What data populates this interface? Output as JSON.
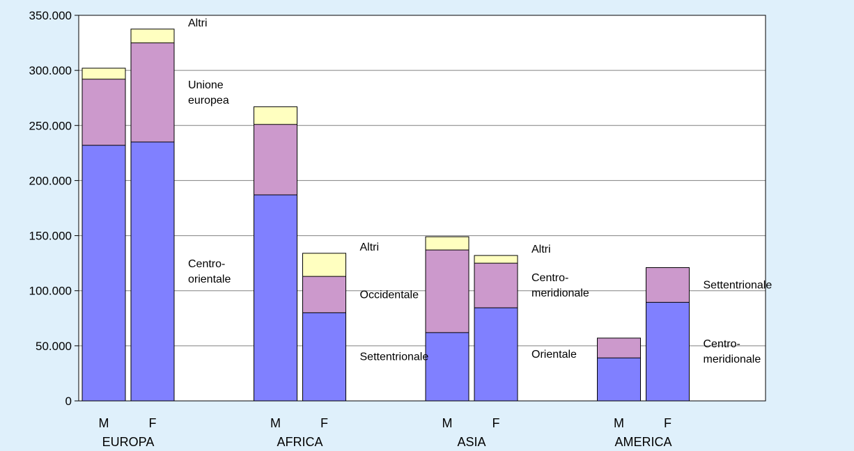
{
  "chart_data": {
    "type": "bar",
    "stacked": true,
    "ylim": [
      0,
      350000
    ],
    "yticks": [
      {
        "value": 0,
        "label": "0"
      },
      {
        "value": 50000,
        "label": "50.000"
      },
      {
        "value": 100000,
        "label": "100.000"
      },
      {
        "value": 150000,
        "label": "150.000"
      },
      {
        "value": 200000,
        "label": "200.000"
      },
      {
        "value": 250000,
        "label": "250.000"
      },
      {
        "value": 300000,
        "label": "300.000"
      },
      {
        "value": 350000,
        "label": "350.000"
      }
    ],
    "grid": true,
    "colors": {
      "bottom": "#8080ff",
      "middle": "#cc99cc",
      "top": "#ffffc0",
      "plot_bg": "#ffffff",
      "gridline": "#808080",
      "bar_edge": "#000000"
    },
    "groups": [
      {
        "name": "EUROPA",
        "bars": [
          {
            "label": "M",
            "values": [
              232000,
              60000,
              10000
            ]
          },
          {
            "label": "F",
            "values": [
              235000,
              90000,
              12500
            ]
          }
        ],
        "segment_labels": [
          "Centro-\norientale",
          "Unione\neuropea",
          "Altri"
        ]
      },
      {
        "name": "AFRICA",
        "bars": [
          {
            "label": "M",
            "values": [
              187000,
              64000,
              16000
            ]
          },
          {
            "label": "F",
            "values": [
              80000,
              33000,
              21000
            ]
          }
        ],
        "segment_labels": [
          "Settentrionale",
          "Occidentale",
          "Altri"
        ]
      },
      {
        "name": "ASIA",
        "bars": [
          {
            "label": "M",
            "values": [
              62000,
              75000,
              12000
            ]
          },
          {
            "label": "F",
            "values": [
              84500,
              40500,
              7000
            ]
          }
        ],
        "segment_labels": [
          "Orientale",
          "Centro-\nmeridionale",
          "Altri"
        ]
      },
      {
        "name": "AMERICA",
        "bars": [
          {
            "label": "M",
            "values": [
              39000,
              18000,
              0
            ]
          },
          {
            "label": "F",
            "values": [
              89500,
              31500,
              0
            ]
          }
        ],
        "segment_labels": [
          "Centro-\nmeridionale",
          "Settentrionale"
        ]
      }
    ]
  }
}
